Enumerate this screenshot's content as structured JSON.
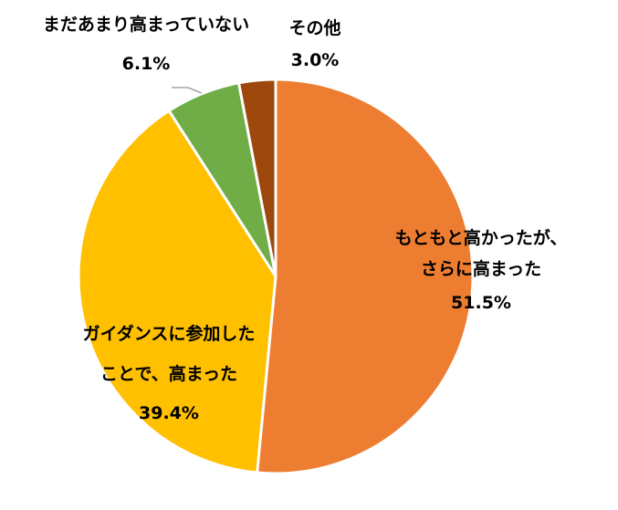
{
  "chart_data": {
    "type": "pie",
    "slices": [
      {
        "label_lines": [
          "もともと高かったが、",
          "さらに高まった"
        ],
        "value": 51.5,
        "value_label": "51.5%",
        "color": "#ED7D31"
      },
      {
        "label_lines": [
          "ガイダンスに参加した",
          "ことで、高まった"
        ],
        "value": 39.4,
        "value_label": "39.4%",
        "color": "#FFC000"
      },
      {
        "label_lines": [
          "まだあまり高まっていない"
        ],
        "value": 6.1,
        "value_label": "6.1%",
        "color": "#70AD47"
      },
      {
        "label_lines": [
          "その他"
        ],
        "value": 3.0,
        "value_label": "3.0%",
        "color": "#9E480E"
      }
    ],
    "start": "12 o'clock",
    "direction": "clockwise",
    "leader_line_color": "#A5A5A5"
  }
}
